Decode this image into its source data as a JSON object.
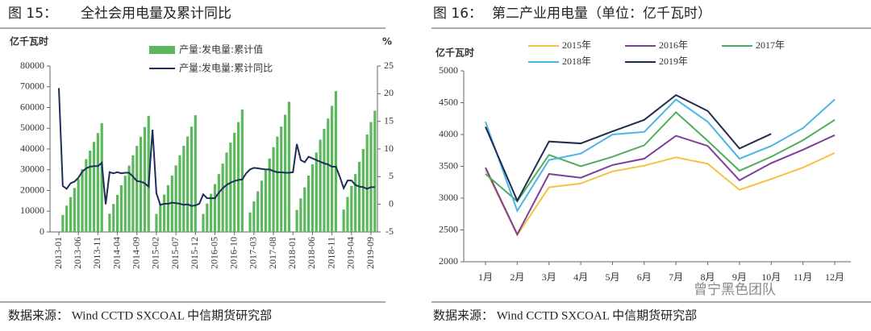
{
  "chart_data": [
    {
      "type": "bar",
      "figure_label": "图 15：",
      "title": "全社会用电量及累计同比",
      "source": "数据来源：  Wind CCTD SXCOAL  中信期货研究部",
      "ylabel": "亿千瓦时",
      "y2label": "%",
      "categories": [
        "2013-01",
        null,
        null,
        null,
        null,
        "2013-06",
        null,
        null,
        null,
        null,
        "2013-11",
        null,
        null,
        null,
        null,
        "2014-04",
        null,
        null,
        null,
        null,
        "2014-09",
        null,
        null,
        null,
        null,
        "2015-02",
        null,
        null,
        null,
        null,
        "2015-07",
        null,
        null,
        null,
        null,
        "2015-12",
        null,
        null,
        null,
        null,
        "2016-05",
        null,
        null,
        null,
        null,
        "2016-10",
        null,
        null,
        null,
        null,
        "2017-03",
        null,
        null,
        null,
        null,
        "2017-08",
        null,
        null,
        null,
        null,
        "2018-01",
        null,
        null,
        null,
        null,
        "2018-06",
        null,
        null,
        null,
        null,
        "2018-11",
        null,
        null,
        null,
        null,
        "2019-04",
        null,
        null,
        null,
        null,
        "2019-09",
        null
      ],
      "series": [
        {
          "name": "产量:发电量:累计值",
          "color": "#5cb85c",
          "type": "bar",
          "values": [
            null,
            8200,
            12700,
            16800,
            21200,
            25500,
            30300,
            35100,
            39200,
            43400,
            47700,
            52500,
            null,
            8800,
            13500,
            17900,
            22500,
            27100,
            32000,
            37000,
            41500,
            45900,
            50600,
            56000,
            null,
            8700,
            13500,
            18000,
            22600,
            27200,
            32100,
            37000,
            41500,
            46000,
            50800,
            56300,
            null,
            8700,
            13700,
            18400,
            23100,
            27900,
            33000,
            38300,
            43100,
            47800,
            53000,
            59000,
            null,
            9400,
            14700,
            19600,
            24700,
            29800,
            35400,
            40900,
            46000,
            50800,
            56500,
            62800,
            null,
            10600,
            16200,
            21500,
            27200,
            32600,
            38300,
            44500,
            49700,
            54700,
            60800,
            67900,
            null,
            10800,
            16900,
            22200,
            27900,
            33800,
            40000,
            47000,
            53000,
            58500
          ]
        },
        {
          "name": "产量:发电量:累计同比",
          "color": "#1f2d5a",
          "type": "line",
          "axis": "y2",
          "values": [
            21,
            3.3,
            2.8,
            3.8,
            4.1,
            4.8,
            5.9,
            6.5,
            6.8,
            6.9,
            6.9,
            7.5,
            0,
            5.8,
            5.6,
            5.8,
            5.6,
            5.7,
            5.7,
            5.0,
            4.2,
            4.1,
            3.8,
            3.2,
            13.5,
            2.0,
            -0.1,
            0.1,
            0.1,
            0.3,
            0.2,
            0.1,
            -0.1,
            0,
            -0.3,
            -0.2,
            0.1,
            1.8,
            1.1,
            1.1,
            1.1,
            2.1,
            2.9,
            3.5,
            3.9,
            4.2,
            4.4,
            4.5,
            5.6,
            6.3,
            6.6,
            6.5,
            6.4,
            6.3,
            6.3,
            6.0,
            5.8,
            5.8,
            5.7,
            5.7,
            5.8,
            10.9,
            8.0,
            7.6,
            8.6,
            8.3,
            8.0,
            7.7,
            7.4,
            7.2,
            6.8,
            6.8,
            5.0,
            2.9,
            4.3,
            4.3,
            3.5,
            3.2,
            3.1,
            2.8,
            3.1,
            3.1
          ]
        }
      ],
      "ylim": [
        0,
        80000
      ],
      "yticks": [
        0,
        10000,
        20000,
        30000,
        40000,
        50000,
        60000,
        70000,
        80000
      ],
      "y2lim": [
        -5,
        25
      ],
      "y2ticks": [
        -5,
        0,
        5,
        10,
        15,
        20,
        25
      ]
    },
    {
      "type": "line",
      "figure_label": "图 16：",
      "title": "第二产业用电量（单位：亿千瓦时）",
      "source": "数据来源：  Wind CCTD SXCOAL  中信期货研究部",
      "ylabel": "亿千瓦时",
      "categories": [
        "1月",
        "2月",
        "3月",
        "4月",
        "5月",
        "6月",
        "7月",
        "8月",
        "9月",
        "10月",
        "11月",
        "12月"
      ],
      "series": [
        {
          "name": "2015年",
          "color": "#f5c342",
          "values": [
            3450,
            2420,
            3170,
            3230,
            3420,
            3510,
            3640,
            3540,
            3130,
            3300,
            3480,
            3710
          ]
        },
        {
          "name": "2016年",
          "color": "#7e3f98",
          "values": [
            3480,
            2430,
            3380,
            3320,
            3520,
            3620,
            3980,
            3820,
            3280,
            3550,
            3760,
            3990
          ]
        },
        {
          "name": "2017年",
          "color": "#4fad5b",
          "values": [
            3380,
            2950,
            3680,
            3500,
            3650,
            3830,
            4350,
            3900,
            3430,
            3650,
            3910,
            4230
          ]
        },
        {
          "name": "2018年",
          "color": "#4bb4e6",
          "values": [
            4200,
            2800,
            3600,
            3700,
            4000,
            4040,
            4550,
            4200,
            3620,
            3820,
            4100,
            4550
          ]
        },
        {
          "name": "2019年",
          "color": "#1f2d4f",
          "values": [
            4120,
            2960,
            3890,
            3860,
            4050,
            4230,
            4620,
            4370,
            3780,
            4010,
            null,
            null
          ]
        }
      ],
      "ylim": [
        2000,
        5000
      ],
      "yticks": [
        2000,
        2500,
        3000,
        3500,
        4000,
        4500,
        5000
      ]
    }
  ],
  "watermark": "曾宁黑色团队"
}
